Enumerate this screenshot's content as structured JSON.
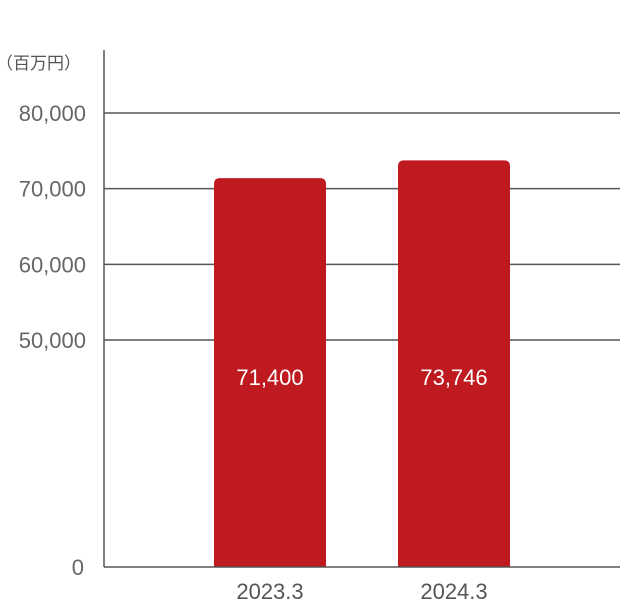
{
  "chart_data": {
    "type": "bar",
    "unit_label": "（百万円）",
    "categories": [
      "2023.3",
      "2024.3"
    ],
    "values": [
      71400,
      73746
    ],
    "value_labels": [
      "71,400",
      "73,746"
    ],
    "y_ticks": [
      {
        "value": 0,
        "label": "0"
      },
      {
        "value": 50000,
        "label": "50,000"
      },
      {
        "value": 60000,
        "label": "60,000"
      },
      {
        "value": 70000,
        "label": "70,000"
      },
      {
        "value": 80000,
        "label": "80,000"
      }
    ],
    "axis_break": {
      "from": 0,
      "to": 50000
    },
    "ylim": [
      0,
      80000
    ],
    "grid": true,
    "bar_color": "#be1a20",
    "grid_color": "#555555"
  }
}
